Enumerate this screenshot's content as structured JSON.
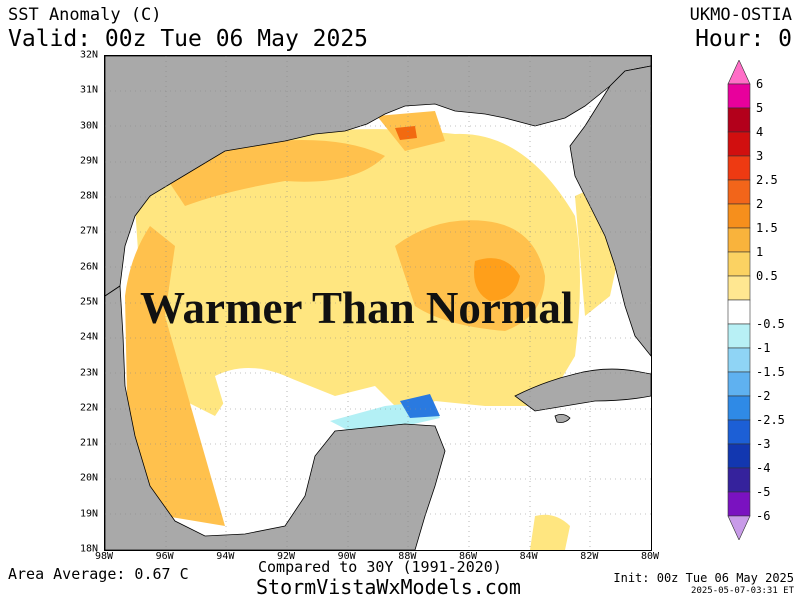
{
  "header": {
    "product": "SST Anomaly (C)",
    "valid": "Valid: 00z Tue 06 May 2025",
    "source": "UKMO-OSTIA",
    "hour": "Hour: 0"
  },
  "map": {
    "overlay_text": "Warmer Than Normal",
    "lat_labels": [
      "32N",
      "31N",
      "30N",
      "29N",
      "28N",
      "27N",
      "26N",
      "25N",
      "24N",
      "23N",
      "22N",
      "21N",
      "20N",
      "19N",
      "18N"
    ],
    "lon_labels": [
      "98W",
      "96W",
      "94W",
      "92W",
      "90W",
      "88W",
      "86W",
      "84W",
      "82W",
      "80W"
    ],
    "colors": {
      "land": "#a9a9a9",
      "water_neutral": "#ffffff",
      "anom_0_5_1": "#ffe680",
      "anom_1_1_5": "#ffc14d",
      "anom_1_5_2": "#ff9f1a",
      "anom_2_2_5": "#f26a10",
      "cool_minus_0_5": "#b3f0f5",
      "cool_minus_1": "#8fcff5",
      "cool_minus_2": "#2a7ae0"
    }
  },
  "colorbar": {
    "labels": [
      "6",
      "5",
      "4",
      "3",
      "2.5",
      "2",
      "1.5",
      "1",
      "0.5",
      "-0.5",
      "-1",
      "-1.5",
      "-2",
      "-2.5",
      "-3",
      "-4",
      "-5",
      "-6"
    ],
    "colors": [
      "#ff6ec7",
      "#e8009c",
      "#b3001b",
      "#d10f0f",
      "#ee3a12",
      "#f2651a",
      "#f68f1c",
      "#f9b33c",
      "#fbd262",
      "#ffe791",
      "#ffffff",
      "#b8f0f5",
      "#8fd4f5",
      "#5fb1f0",
      "#2f8ae6",
      "#1c5fd6",
      "#1237b0",
      "#35229c",
      "#7a12c0",
      "#c89be8"
    ]
  },
  "footer": {
    "area_average": "Area Average: 0.67 C",
    "compared": "Compared to 30Y (1991-2020)",
    "site": "StormVistaWxModels.com",
    "init": "Init: 00z Tue 06 May 2025",
    "timestamp": "2025-05-07-03:31 ET"
  }
}
